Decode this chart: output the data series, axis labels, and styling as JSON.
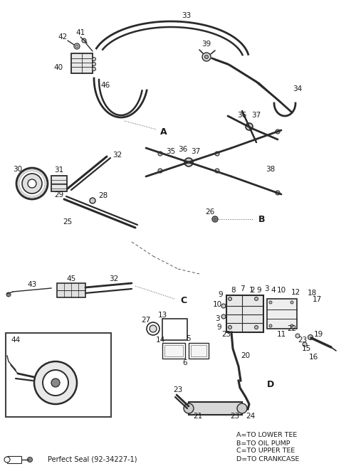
{
  "bg_color": "#ffffff",
  "line_color": "#2a2a2a",
  "label_color": "#1a1a1a",
  "legend_text": [
    "A=TO LOWER TEE",
    "B=TO OIL PUMP",
    "C=TO UPPER TEE",
    "D=TO CRANKCASE"
  ],
  "footer_text": "Perfect Seal (92-34227-1)"
}
